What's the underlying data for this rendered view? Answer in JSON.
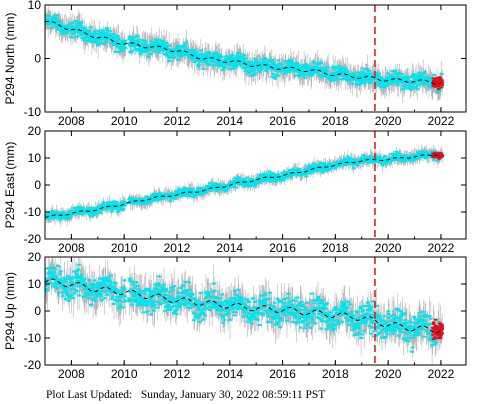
{
  "footer": "Plot Last Updated:   Sunday, January 30, 2022 08:59:11 PST",
  "colors": {
    "daily_scatter": "#00e5f0",
    "error_bars": "#b4b4b4",
    "recent_points": "#e0101a",
    "trend_line": "#000000",
    "event_line": "#d62222"
  },
  "chart_data": [
    {
      "type": "scatter",
      "ylabel": "P294 North (mm)",
      "xlim": [
        2007.0,
        2022.95
      ],
      "ylim": [
        -10,
        10
      ],
      "x_ticks": [
        2008,
        2010,
        2012,
        2014,
        2016,
        2018,
        2020,
        2022
      ],
      "y_ticks": [
        10,
        0,
        -10
      ],
      "event_line_x": 2019.5,
      "trend": [
        {
          "x": 2007.0,
          "y": 7.0
        },
        {
          "x": 2008.0,
          "y": 5.5
        },
        {
          "x": 2009.0,
          "y": 4.0
        },
        {
          "x": 2010.0,
          "y": 2.8
        },
        {
          "x": 2011.0,
          "y": 2.2
        },
        {
          "x": 2012.0,
          "y": 1.5
        },
        {
          "x": 2013.0,
          "y": 0.0
        },
        {
          "x": 2014.0,
          "y": -0.5
        },
        {
          "x": 2015.0,
          "y": -1.3
        },
        {
          "x": 2016.0,
          "y": -1.8
        },
        {
          "x": 2017.0,
          "y": -2.2
        },
        {
          "x": 2018.0,
          "y": -3.0
        },
        {
          "x": 2019.0,
          "y": -3.5
        },
        {
          "x": 2020.0,
          "y": -4.0
        },
        {
          "x": 2021.0,
          "y": -4.2
        },
        {
          "x": 2022.0,
          "y": -4.5
        }
      ],
      "scatter_spread": 1.2,
      "error_bar": 2.2,
      "recent_mean": -4.5
    },
    {
      "type": "scatter",
      "ylabel": "P294 East (mm)",
      "xlim": [
        2007.0,
        2022.95
      ],
      "ylim": [
        -20,
        20
      ],
      "x_ticks": [
        2008,
        2010,
        2012,
        2014,
        2016,
        2018,
        2020,
        2022
      ],
      "y_ticks": [
        20,
        10,
        0,
        -10,
        -20
      ],
      "event_line_x": 2019.5,
      "trend": [
        {
          "x": 2007.0,
          "y": -12.0
        },
        {
          "x": 2008.0,
          "y": -10.5
        },
        {
          "x": 2009.0,
          "y": -9.0
        },
        {
          "x": 2010.0,
          "y": -7.0
        },
        {
          "x": 2011.0,
          "y": -5.0
        },
        {
          "x": 2012.0,
          "y": -3.5
        },
        {
          "x": 2013.0,
          "y": -2.0
        },
        {
          "x": 2014.0,
          "y": 0.0
        },
        {
          "x": 2015.0,
          "y": 2.0
        },
        {
          "x": 2016.0,
          "y": 3.5
        },
        {
          "x": 2017.0,
          "y": 5.5
        },
        {
          "x": 2018.0,
          "y": 7.5
        },
        {
          "x": 2019.0,
          "y": 9.0
        },
        {
          "x": 2020.0,
          "y": 9.5
        },
        {
          "x": 2021.0,
          "y": 10.5
        },
        {
          "x": 2022.0,
          "y": 11.5
        }
      ],
      "scatter_spread": 1.3,
      "error_bar": 2.4,
      "recent_mean": 11.0
    },
    {
      "type": "scatter",
      "ylabel": "P294 Up (mm)",
      "xlim": [
        2007.0,
        2022.95
      ],
      "ylim": [
        -20,
        20
      ],
      "x_ticks": [
        2008,
        2010,
        2012,
        2014,
        2016,
        2018,
        2020,
        2022
      ],
      "y_ticks": [
        20,
        10,
        0,
        -10,
        -20
      ],
      "event_line_x": 2019.5,
      "trend": [
        {
          "x": 2007.0,
          "y": 11.0
        },
        {
          "x": 2008.0,
          "y": 10.0
        },
        {
          "x": 2009.0,
          "y": 8.0
        },
        {
          "x": 2010.0,
          "y": 7.0
        },
        {
          "x": 2011.0,
          "y": 5.5
        },
        {
          "x": 2012.0,
          "y": 4.0
        },
        {
          "x": 2013.0,
          "y": 3.0
        },
        {
          "x": 2014.0,
          "y": 2.0
        },
        {
          "x": 2015.0,
          "y": 1.0
        },
        {
          "x": 2016.0,
          "y": 0.5
        },
        {
          "x": 2017.0,
          "y": -0.5
        },
        {
          "x": 2018.0,
          "y": -1.5
        },
        {
          "x": 2019.0,
          "y": -2.5
        },
        {
          "x": 2020.0,
          "y": -5.0
        },
        {
          "x": 2021.0,
          "y": -6.5
        },
        {
          "x": 2022.0,
          "y": -7.0
        }
      ],
      "scatter_spread": 4.5,
      "error_bar": 6.0,
      "recent_mean": -7.0
    }
  ]
}
